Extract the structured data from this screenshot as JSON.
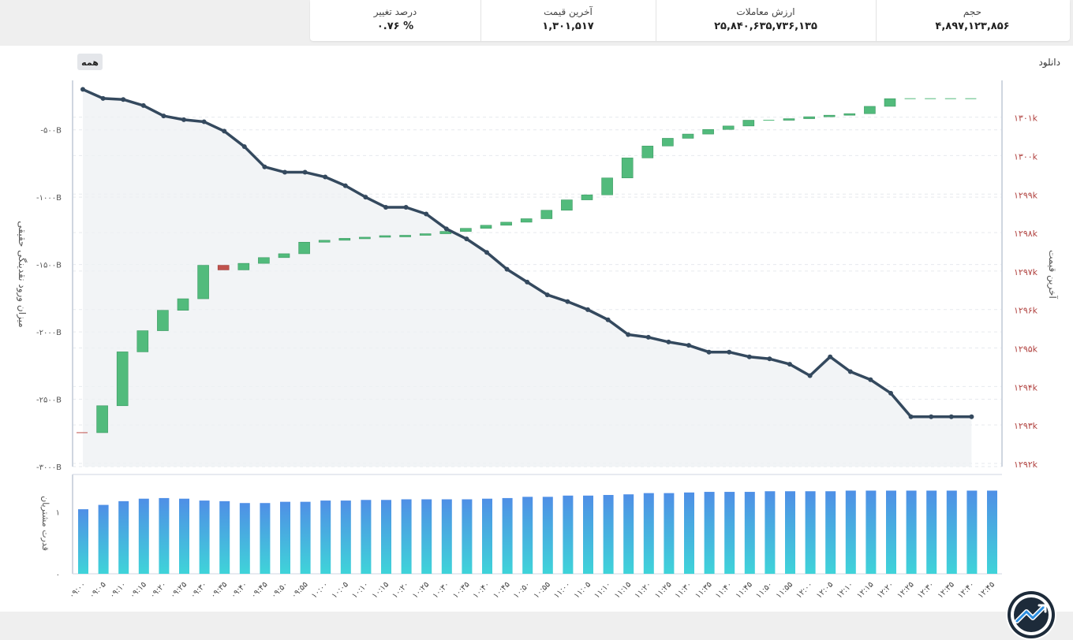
{
  "stats": [
    {
      "label": "درصد تغییر",
      "value": "۰.۷۶ %"
    },
    {
      "label": "آخرین قیمت",
      "value": "۱,۳۰۱,۵۱۷"
    },
    {
      "label": "ارزش معاملات",
      "value": "۲۵,۸۴۰,۶۳۵,۷۳۶,۱۳۵"
    },
    {
      "label": "حجم",
      "value": "۴,۸۹۷,۱۲۳,۸۵۶"
    }
  ],
  "filter_button": "همه",
  "download_label": "دانلود",
  "colors": {
    "line": "#34495e",
    "up": "#52bb7c",
    "down": "#c0524d",
    "bar_top": "#4f8fe6",
    "bar_bottom": "#3fd4d9",
    "price_axis": "#b0413e"
  },
  "chart_data": [
    {
      "type": "line",
      "name": "money-flow",
      "ylabel": "میزان ورود نقدینگی حقیقی",
      "yticks": [
        "-۳۰۰۰B",
        "-۲۵۰۰B",
        "-۲۰۰۰B",
        "-۱۵۰۰B",
        "-۱۰۰۰B",
        "-۵۰۰B"
      ],
      "ytick_values": [
        -3000,
        -2500,
        -2000,
        -1500,
        -1000,
        -500
      ],
      "ylim": [
        -3000,
        -180
      ],
      "values": [
        -200,
        -267,
        -275,
        -320,
        -397,
        -425,
        -440,
        -510,
        -625,
        -775,
        -815,
        -815,
        -850,
        -915,
        -1000,
        -1075,
        -1075,
        -1125,
        -1235,
        -1310,
        -1410,
        -1535,
        -1630,
        -1725,
        -1775,
        -1835,
        -1910,
        -2020,
        -2040,
        -2075,
        -2100,
        -2150,
        -2150,
        -2185,
        -2200,
        -2240,
        -2325,
        -2185,
        -2295,
        -2355,
        -2455,
        -2630,
        -2630,
        -2630,
        -2630
      ]
    },
    {
      "type": "candlestick",
      "name": "price",
      "ylabel": "آخرین قیمت",
      "yticks": [
        "۱۲۹۲k",
        "۱۲۹۳k",
        "۱۲۹۴k",
        "۱۲۹۵k",
        "۱۲۹۶k",
        "۱۲۹۷k",
        "۱۲۹۸k",
        "۱۲۹۹k",
        "۱۳۰۰k",
        "۱۳۰۱k"
      ],
      "ytick_values": [
        1292000,
        1293000,
        1294000,
        1295000,
        1296000,
        1297000,
        1298000,
        1299000,
        1300000,
        1301000
      ],
      "ylim": [
        1292000,
        1301750
      ],
      "candles": [
        [
          1292800,
          1292800
        ],
        [
          1292800,
          1293500
        ],
        [
          1293500,
          1294900
        ],
        [
          1294900,
          1295450
        ],
        [
          1295450,
          1295980
        ],
        [
          1295980,
          1296280
        ],
        [
          1296280,
          1297150
        ],
        [
          1297150,
          1297030
        ],
        [
          1297030,
          1297200
        ],
        [
          1297200,
          1297350
        ],
        [
          1297350,
          1297450
        ],
        [
          1297450,
          1297750
        ],
        [
          1297750,
          1297800
        ],
        [
          1297800,
          1297850
        ],
        [
          1297850,
          1297880
        ],
        [
          1297880,
          1297920
        ],
        [
          1297920,
          1297930
        ],
        [
          1297930,
          1297970
        ],
        [
          1297970,
          1298030
        ],
        [
          1298030,
          1298110
        ],
        [
          1298110,
          1298190
        ],
        [
          1298190,
          1298270
        ],
        [
          1298270,
          1298360
        ],
        [
          1298360,
          1298580
        ],
        [
          1298580,
          1298850
        ],
        [
          1298850,
          1298980
        ],
        [
          1298980,
          1299420
        ],
        [
          1299420,
          1299940
        ],
        [
          1299940,
          1300250
        ],
        [
          1300250,
          1300450
        ],
        [
          1300450,
          1300560
        ],
        [
          1300560,
          1300680
        ],
        [
          1300680,
          1300770
        ],
        [
          1300770,
          1300920
        ],
        [
          1300920,
          1300920
        ],
        [
          1300920,
          1300960
        ],
        [
          1300960,
          1301010
        ],
        [
          1301010,
          1301050
        ],
        [
          1301050,
          1301090
        ],
        [
          1301090,
          1301280
        ],
        [
          1301280,
          1301480
        ],
        [
          1301480,
          1301480
        ],
        [
          1301480,
          1301480
        ],
        [
          1301480,
          1301480
        ],
        [
          1301480,
          1301480
        ]
      ]
    },
    {
      "type": "bar",
      "name": "buyer-power",
      "ylabel": "قدرت مشتریان",
      "yticks": [
        "۰",
        "۱"
      ],
      "ytick_values": [
        0,
        1
      ],
      "ylim": [
        0,
        1.6
      ],
      "categories": [
        "۰۹:۰۰",
        "۰۹:۰۵",
        "۰۹:۱۰",
        "۰۹:۱۵",
        "۰۹:۲۰",
        "۰۹:۲۵",
        "۰۹:۳۰",
        "۰۹:۳۵",
        "۰۹:۴۰",
        "۰۹:۴۵",
        "۰۹:۵۰",
        "۰۹:۵۵",
        "۱۰:۰۰",
        "۱۰:۰۵",
        "۱۰:۱۰",
        "۱۰:۱۵",
        "۱۰:۲۰",
        "۱۰:۲۵",
        "۱۰:۳۰",
        "۱۰:۳۵",
        "۱۰:۴۰",
        "۱۰:۴۵",
        "۱۰:۵۰",
        "۱۰:۵۵",
        "۱۱:۰۰",
        "۱۱:۰۵",
        "۱۱:۱۰",
        "۱۱:۱۵",
        "۱۱:۲۰",
        "۱۱:۲۵",
        "۱۱:۳۰",
        "۱۱:۳۵",
        "۱۱:۴۰",
        "۱۱:۴۵",
        "۱۱:۵۰",
        "۱۱:۵۵",
        "۱۲:۰۰",
        "۱۲:۰۵",
        "۱۲:۱۰",
        "۱۲:۱۵",
        "۱۲:۲۰",
        "۱۲:۲۵",
        "۱۲:۳۰",
        "۱۲:۳۵",
        "۱۲:۴۰",
        "۱۲:۴۵"
      ],
      "values": [
        1.04,
        1.11,
        1.17,
        1.21,
        1.22,
        1.21,
        1.18,
        1.17,
        1.14,
        1.14,
        1.16,
        1.16,
        1.18,
        1.18,
        1.19,
        1.19,
        1.2,
        1.2,
        1.2,
        1.2,
        1.21,
        1.22,
        1.24,
        1.24,
        1.26,
        1.26,
        1.27,
        1.28,
        1.3,
        1.3,
        1.31,
        1.32,
        1.32,
        1.32,
        1.33,
        1.33,
        1.33,
        1.33,
        1.34,
        1.34,
        1.34,
        1.34,
        1.34,
        1.34,
        1.34,
        1.34
      ]
    }
  ]
}
